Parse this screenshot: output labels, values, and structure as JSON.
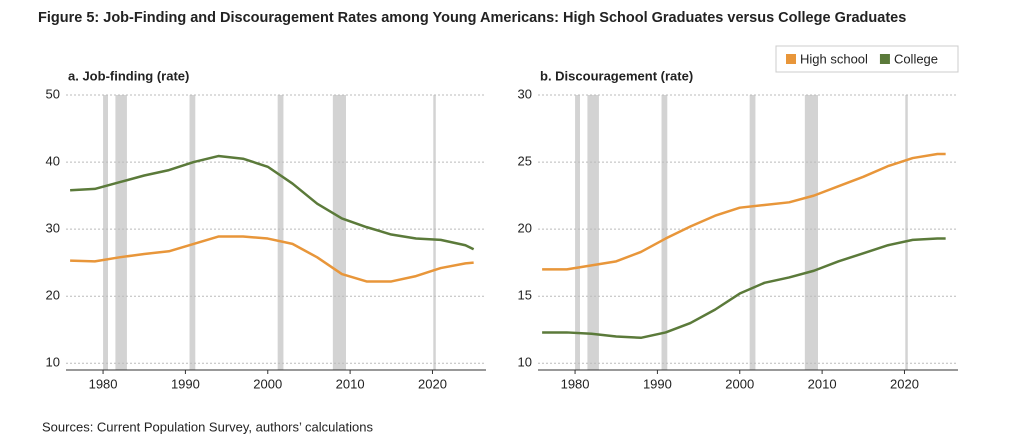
{
  "title": "Figure 5: Job-Finding and Discouragement Rates among Young Americans: High School Graduates versus College Graduates",
  "source": "Sources: Current Population Survey, authors’ calculations",
  "legend_position": "top-right",
  "chart_data": [
    {
      "type": "line",
      "title": "a. Job-finding (rate)",
      "x": [
        1976,
        1979,
        1982,
        1985,
        1988,
        1991,
        1994,
        1997,
        2000,
        2003,
        2006,
        2009,
        2012,
        2015,
        2018,
        2021,
        2024,
        2025
      ],
      "series": [
        {
          "name": "High school",
          "color": "#e8963a",
          "values": [
            25.3,
            25.2,
            25.8,
            26.3,
            26.7,
            27.8,
            28.9,
            28.9,
            28.6,
            27.8,
            25.8,
            23.3,
            22.2,
            22.2,
            23.0,
            24.2,
            24.9,
            25.0
          ]
        },
        {
          "name": "College",
          "color": "#5b7a3a",
          "values": [
            35.8,
            36.0,
            37.0,
            38.0,
            38.8,
            40.0,
            40.9,
            40.5,
            39.3,
            36.8,
            33.8,
            31.6,
            30.3,
            29.2,
            28.6,
            28.4,
            27.6,
            27.0
          ]
        }
      ],
      "shaded_periods": [
        [
          1980.0,
          1980.6
        ],
        [
          1981.5,
          1982.9
        ],
        [
          1990.5,
          1991.2
        ],
        [
          2001.2,
          2001.9
        ],
        [
          2007.9,
          2009.5
        ],
        [
          2020.1,
          2020.4
        ]
      ],
      "xlim": [
        1975.5,
        2026.5
      ],
      "xticks": [
        1980,
        1990,
        2000,
        2010,
        2020
      ],
      "ylim": [
        9,
        50
      ],
      "yticks": [
        10,
        20,
        30,
        40,
        50
      ],
      "grid": true
    },
    {
      "type": "line",
      "title": "b. Discouragement (rate)",
      "x": [
        1976,
        1979,
        1982,
        1985,
        1988,
        1991,
        1994,
        1997,
        2000,
        2003,
        2006,
        2009,
        2012,
        2015,
        2018,
        2021,
        2024,
        2025
      ],
      "series": [
        {
          "color": "#e8963a",
          "values": [
            17.0,
            17.0,
            17.3,
            17.6,
            18.3,
            19.3,
            20.2,
            21.0,
            21.6,
            21.8,
            22.0,
            22.5,
            23.2,
            23.9,
            24.7,
            25.3,
            25.6,
            25.6
          ]
        },
        {
          "color": "#5b7a3a",
          "values": [
            12.3,
            12.3,
            12.2,
            12.0,
            11.9,
            12.3,
            13.0,
            14.0,
            15.2,
            16.0,
            16.4,
            16.9,
            17.6,
            18.2,
            18.8,
            19.2,
            19.3,
            19.3
          ]
        }
      ],
      "shaded_periods": [
        [
          1980.0,
          1980.6
        ],
        [
          1981.5,
          1982.9
        ],
        [
          1990.5,
          1991.2
        ],
        [
          2001.2,
          2001.9
        ],
        [
          2007.9,
          2009.5
        ],
        [
          2020.1,
          2020.4
        ]
      ],
      "xlim": [
        1975.5,
        2026.5
      ],
      "xticks": [
        1980,
        1990,
        2000,
        2010,
        2020
      ],
      "ylim": [
        9.5,
        30
      ],
      "yticks": [
        10,
        15,
        20,
        25,
        30
      ],
      "grid": true
    }
  ]
}
